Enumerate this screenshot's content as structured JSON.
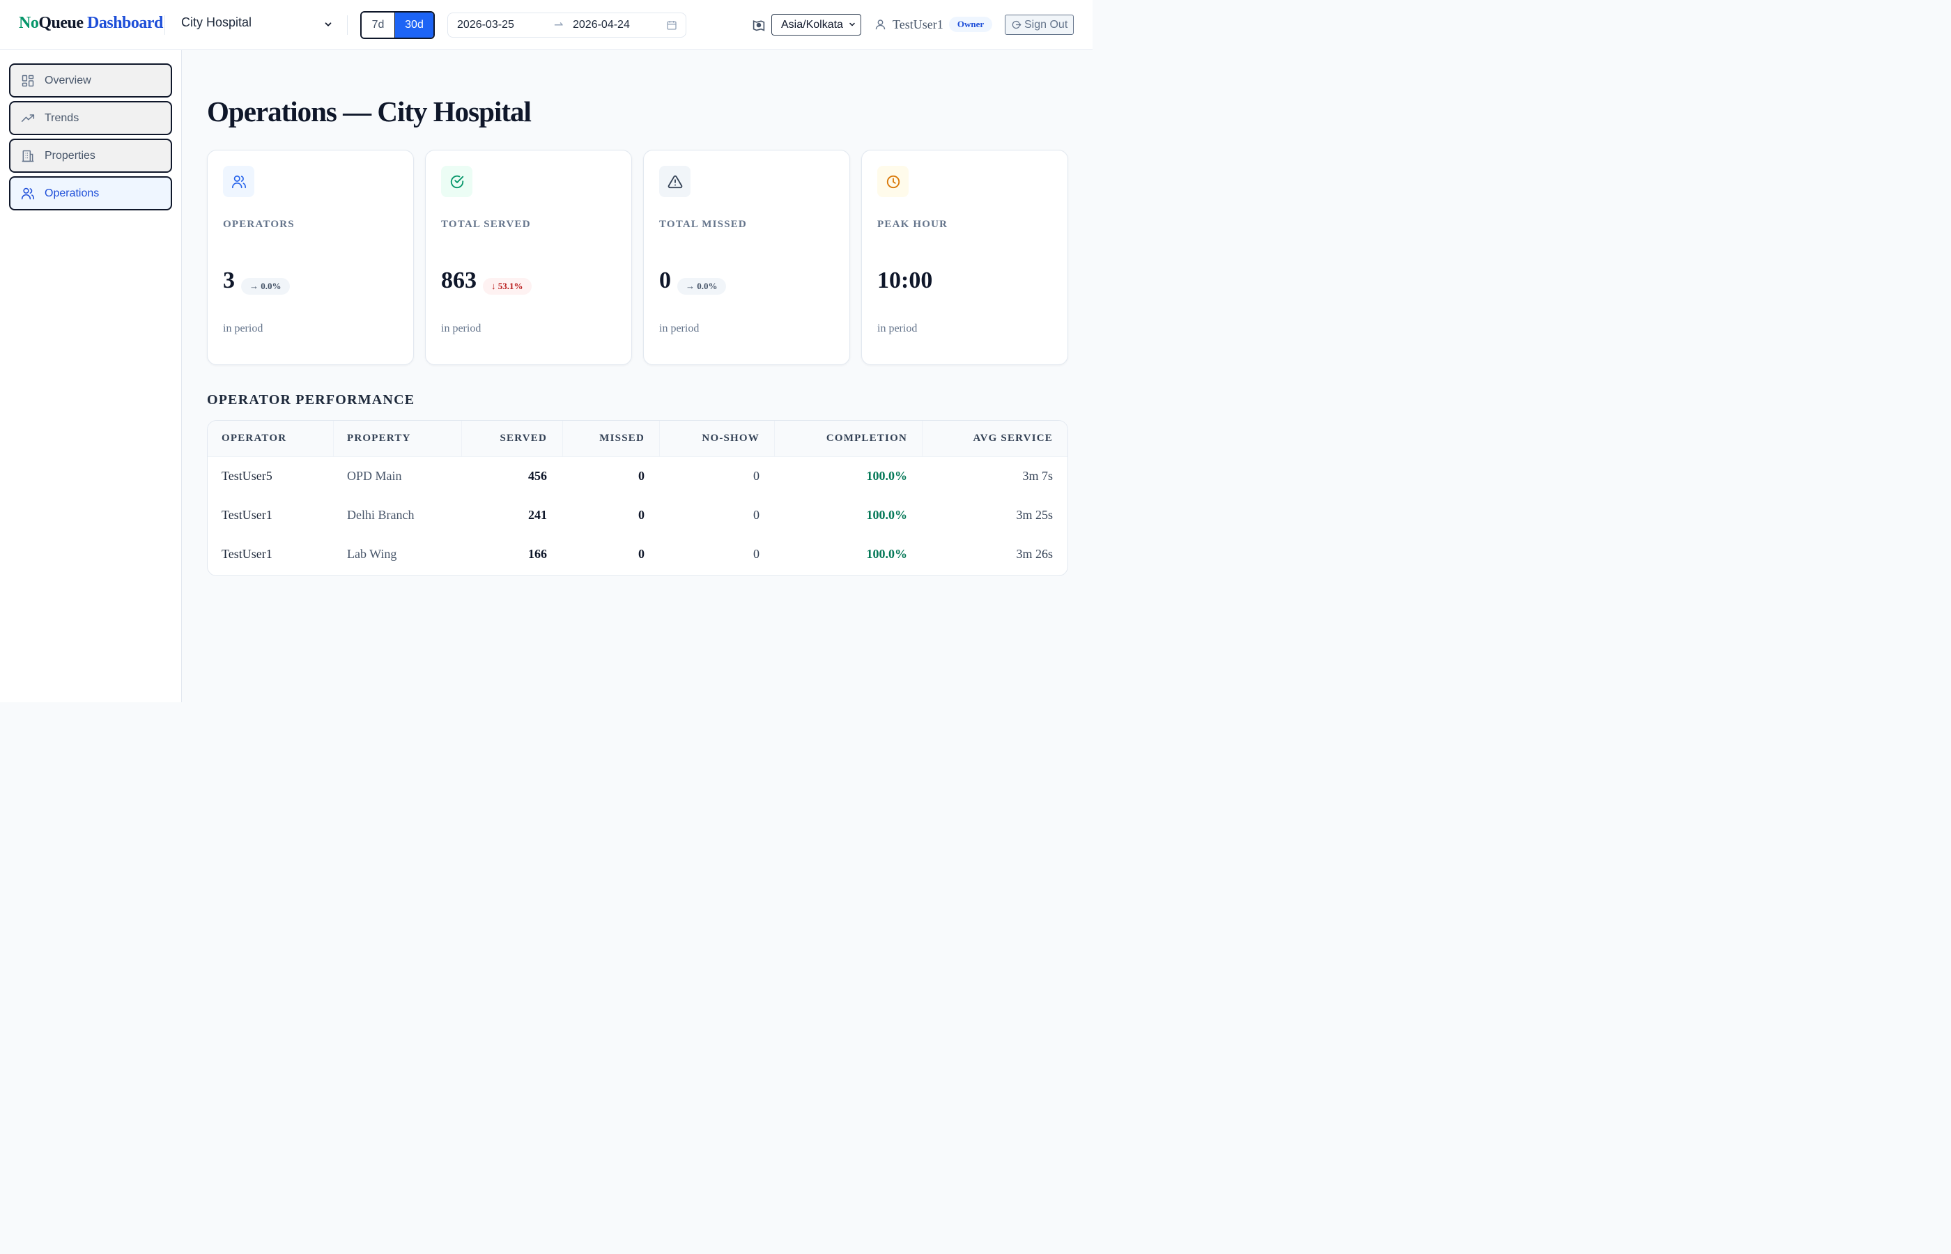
{
  "brand": {
    "part1": "No",
    "part2": "Queue",
    "part3": " Dashboard"
  },
  "header": {
    "property": "City Hospital",
    "ranges": [
      "7d",
      "30d"
    ],
    "active_range": "30d",
    "date_from": "2026-03-25",
    "date_to": "2026-04-24",
    "timezone": "Asia/Kolkata",
    "user": "TestUser1",
    "role": "Owner",
    "sign_out": "Sign Out"
  },
  "sidebar": {
    "items": [
      {
        "label": "Overview",
        "icon": "grid-icon"
      },
      {
        "label": "Trends",
        "icon": "trend-up-icon"
      },
      {
        "label": "Properties",
        "icon": "building-icon"
      },
      {
        "label": "Operations",
        "icon": "users-icon",
        "active": true
      }
    ]
  },
  "main": {
    "title": "Operations — City Hospital",
    "stats": [
      {
        "label": "OPERATORS",
        "value": "3",
        "delta": "→ 0.0%",
        "sub": "in period",
        "icon": "users-icon",
        "accent": "#2563eb"
      },
      {
        "label": "TOTAL SERVED",
        "value": "863",
        "delta": "↓ 53.1%",
        "sub": "in period",
        "icon": "check-circle-icon",
        "accent": "#059669"
      },
      {
        "label": "TOTAL MISSED",
        "value": "0",
        "delta": "→ 0.0%",
        "sub": "in period",
        "icon": "warning-icon",
        "accent": "#334155"
      },
      {
        "label": "PEAK HOUR",
        "value": "10:00",
        "sub": "in period",
        "icon": "clock-icon",
        "accent": "#d97706"
      }
    ],
    "section_title": "OPERATOR PERFORMANCE",
    "table": {
      "headers": [
        "OPERATOR",
        "PROPERTY",
        "SERVED",
        "MISSED",
        "NO-SHOW",
        "COMPLETION",
        "AVG SERVICE"
      ],
      "rows": [
        [
          "TestUser5",
          "OPD Main",
          "456",
          "0",
          "0",
          "100.0%",
          "3m 7s"
        ],
        [
          "TestUser1",
          "Delhi Branch",
          "241",
          "0",
          "0",
          "100.0%",
          "3m 25s"
        ],
        [
          "TestUser1",
          "Lab Wing",
          "166",
          "0",
          "0",
          "100.0%",
          "3m 26s"
        ]
      ]
    }
  }
}
